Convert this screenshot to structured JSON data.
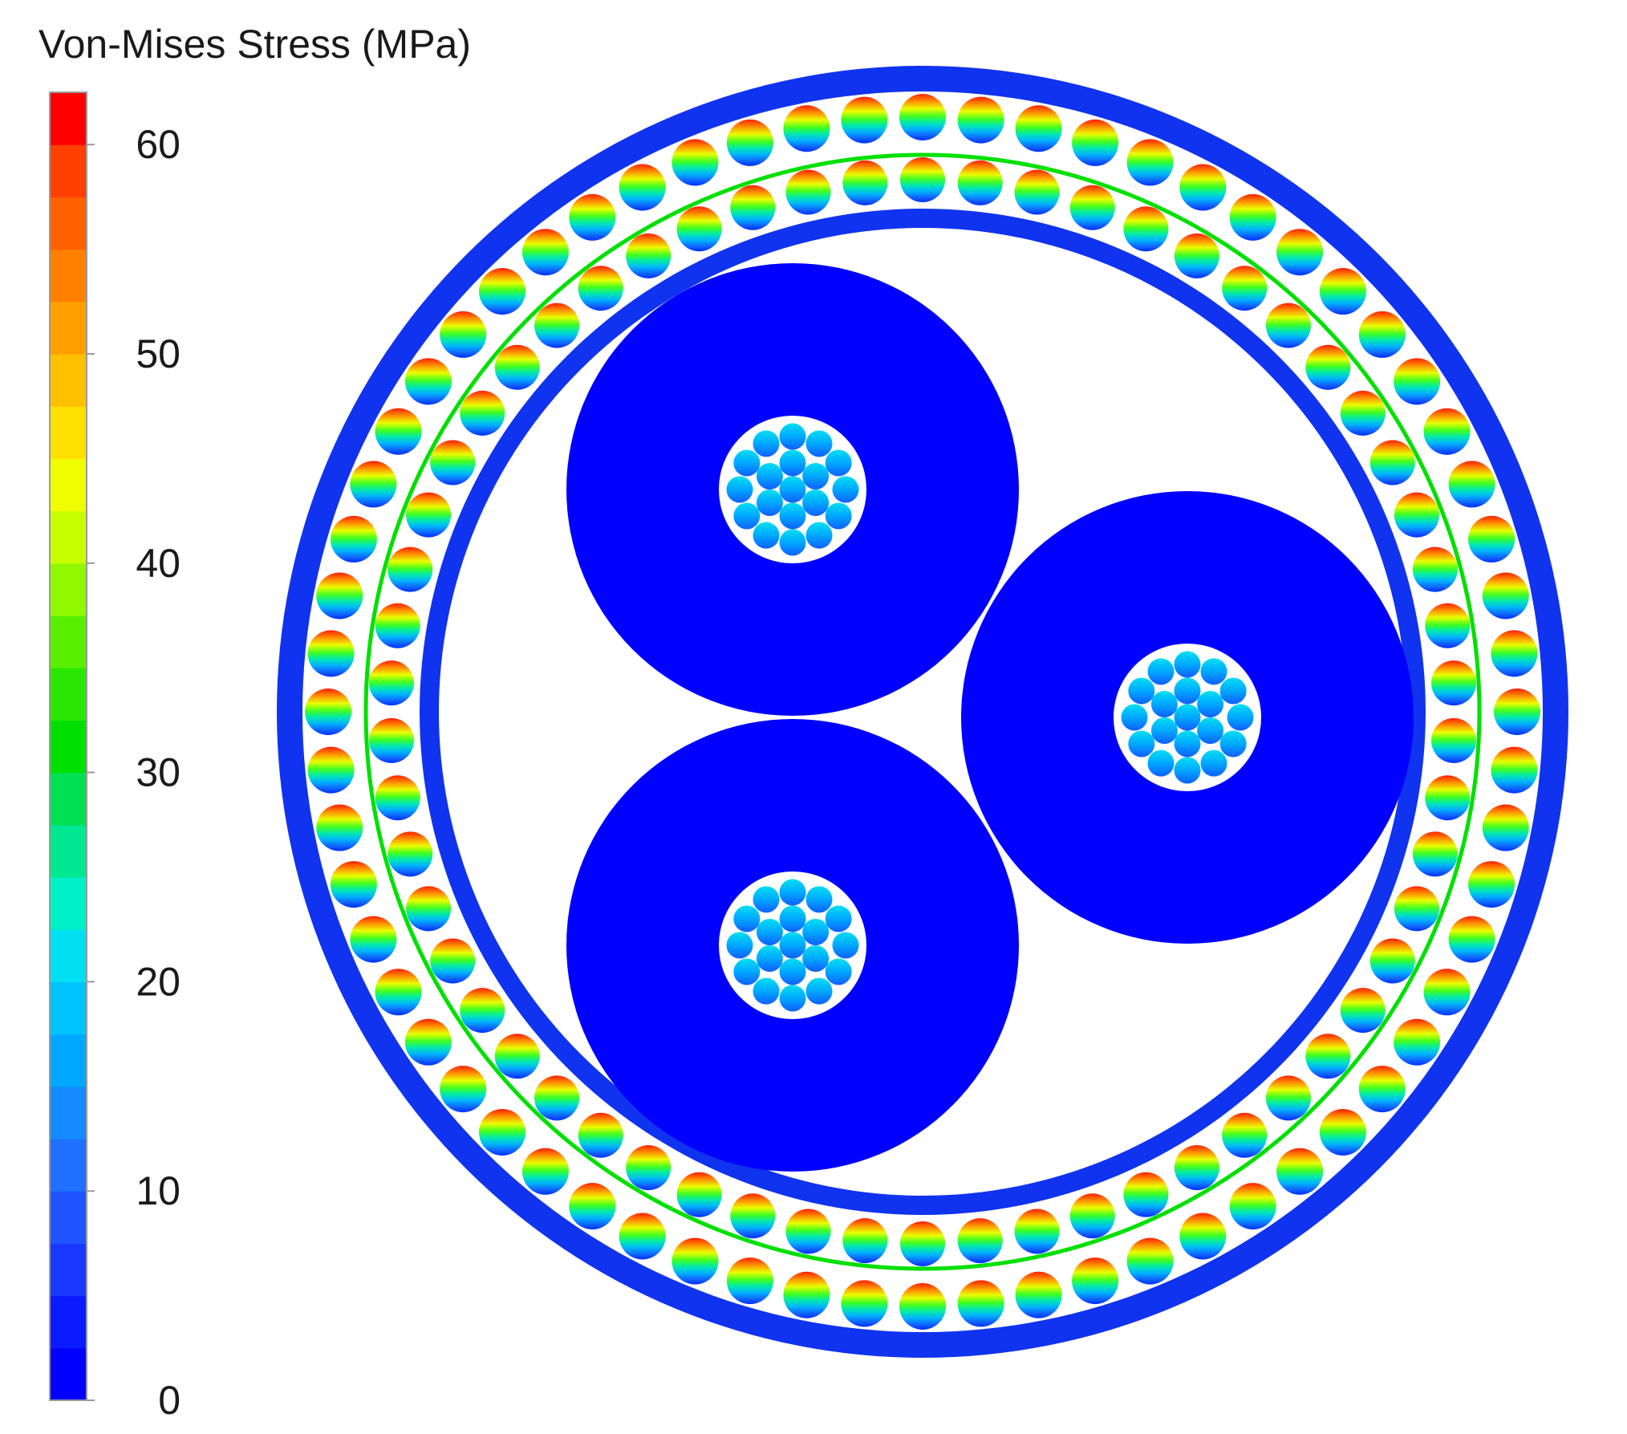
{
  "legend": {
    "title": "Von-Mises Stress (MPa)",
    "min": 0,
    "max": 62.5,
    "ticks": [
      0,
      10,
      20,
      30,
      40,
      50,
      60
    ],
    "colors": [
      "#0000ff",
      "#0a1cff",
      "#1838ff",
      "#1f55ff",
      "#1f70ff",
      "#148cff",
      "#00a8ff",
      "#00c4ff",
      "#00e0f0",
      "#00f0c8",
      "#00e890",
      "#00e050",
      "#00e000",
      "#28e800",
      "#58f000",
      "#90f800",
      "#c8ff00",
      "#f0ff00",
      "#ffe000",
      "#ffc000",
      "#ffa000",
      "#ff8000",
      "#ff6000",
      "#ff4000",
      "#ff0000"
    ]
  },
  "diagram": {
    "type": "cable cross-section stress contour",
    "colors": {
      "low_stress": "#0000ff",
      "outer_sheath": "#0f33ee",
      "ring": "#00e000",
      "background": "#ffffff"
    },
    "armour_wires": {
      "outer_layer_count": 64,
      "inner_layer_count": 58
    },
    "power_cores": 3,
    "conductor_strands_per_core": 19,
    "conductor_colors": [
      "#00b8ff",
      "#00d0f0",
      "#0090ff",
      "#40a0ff"
    ]
  }
}
